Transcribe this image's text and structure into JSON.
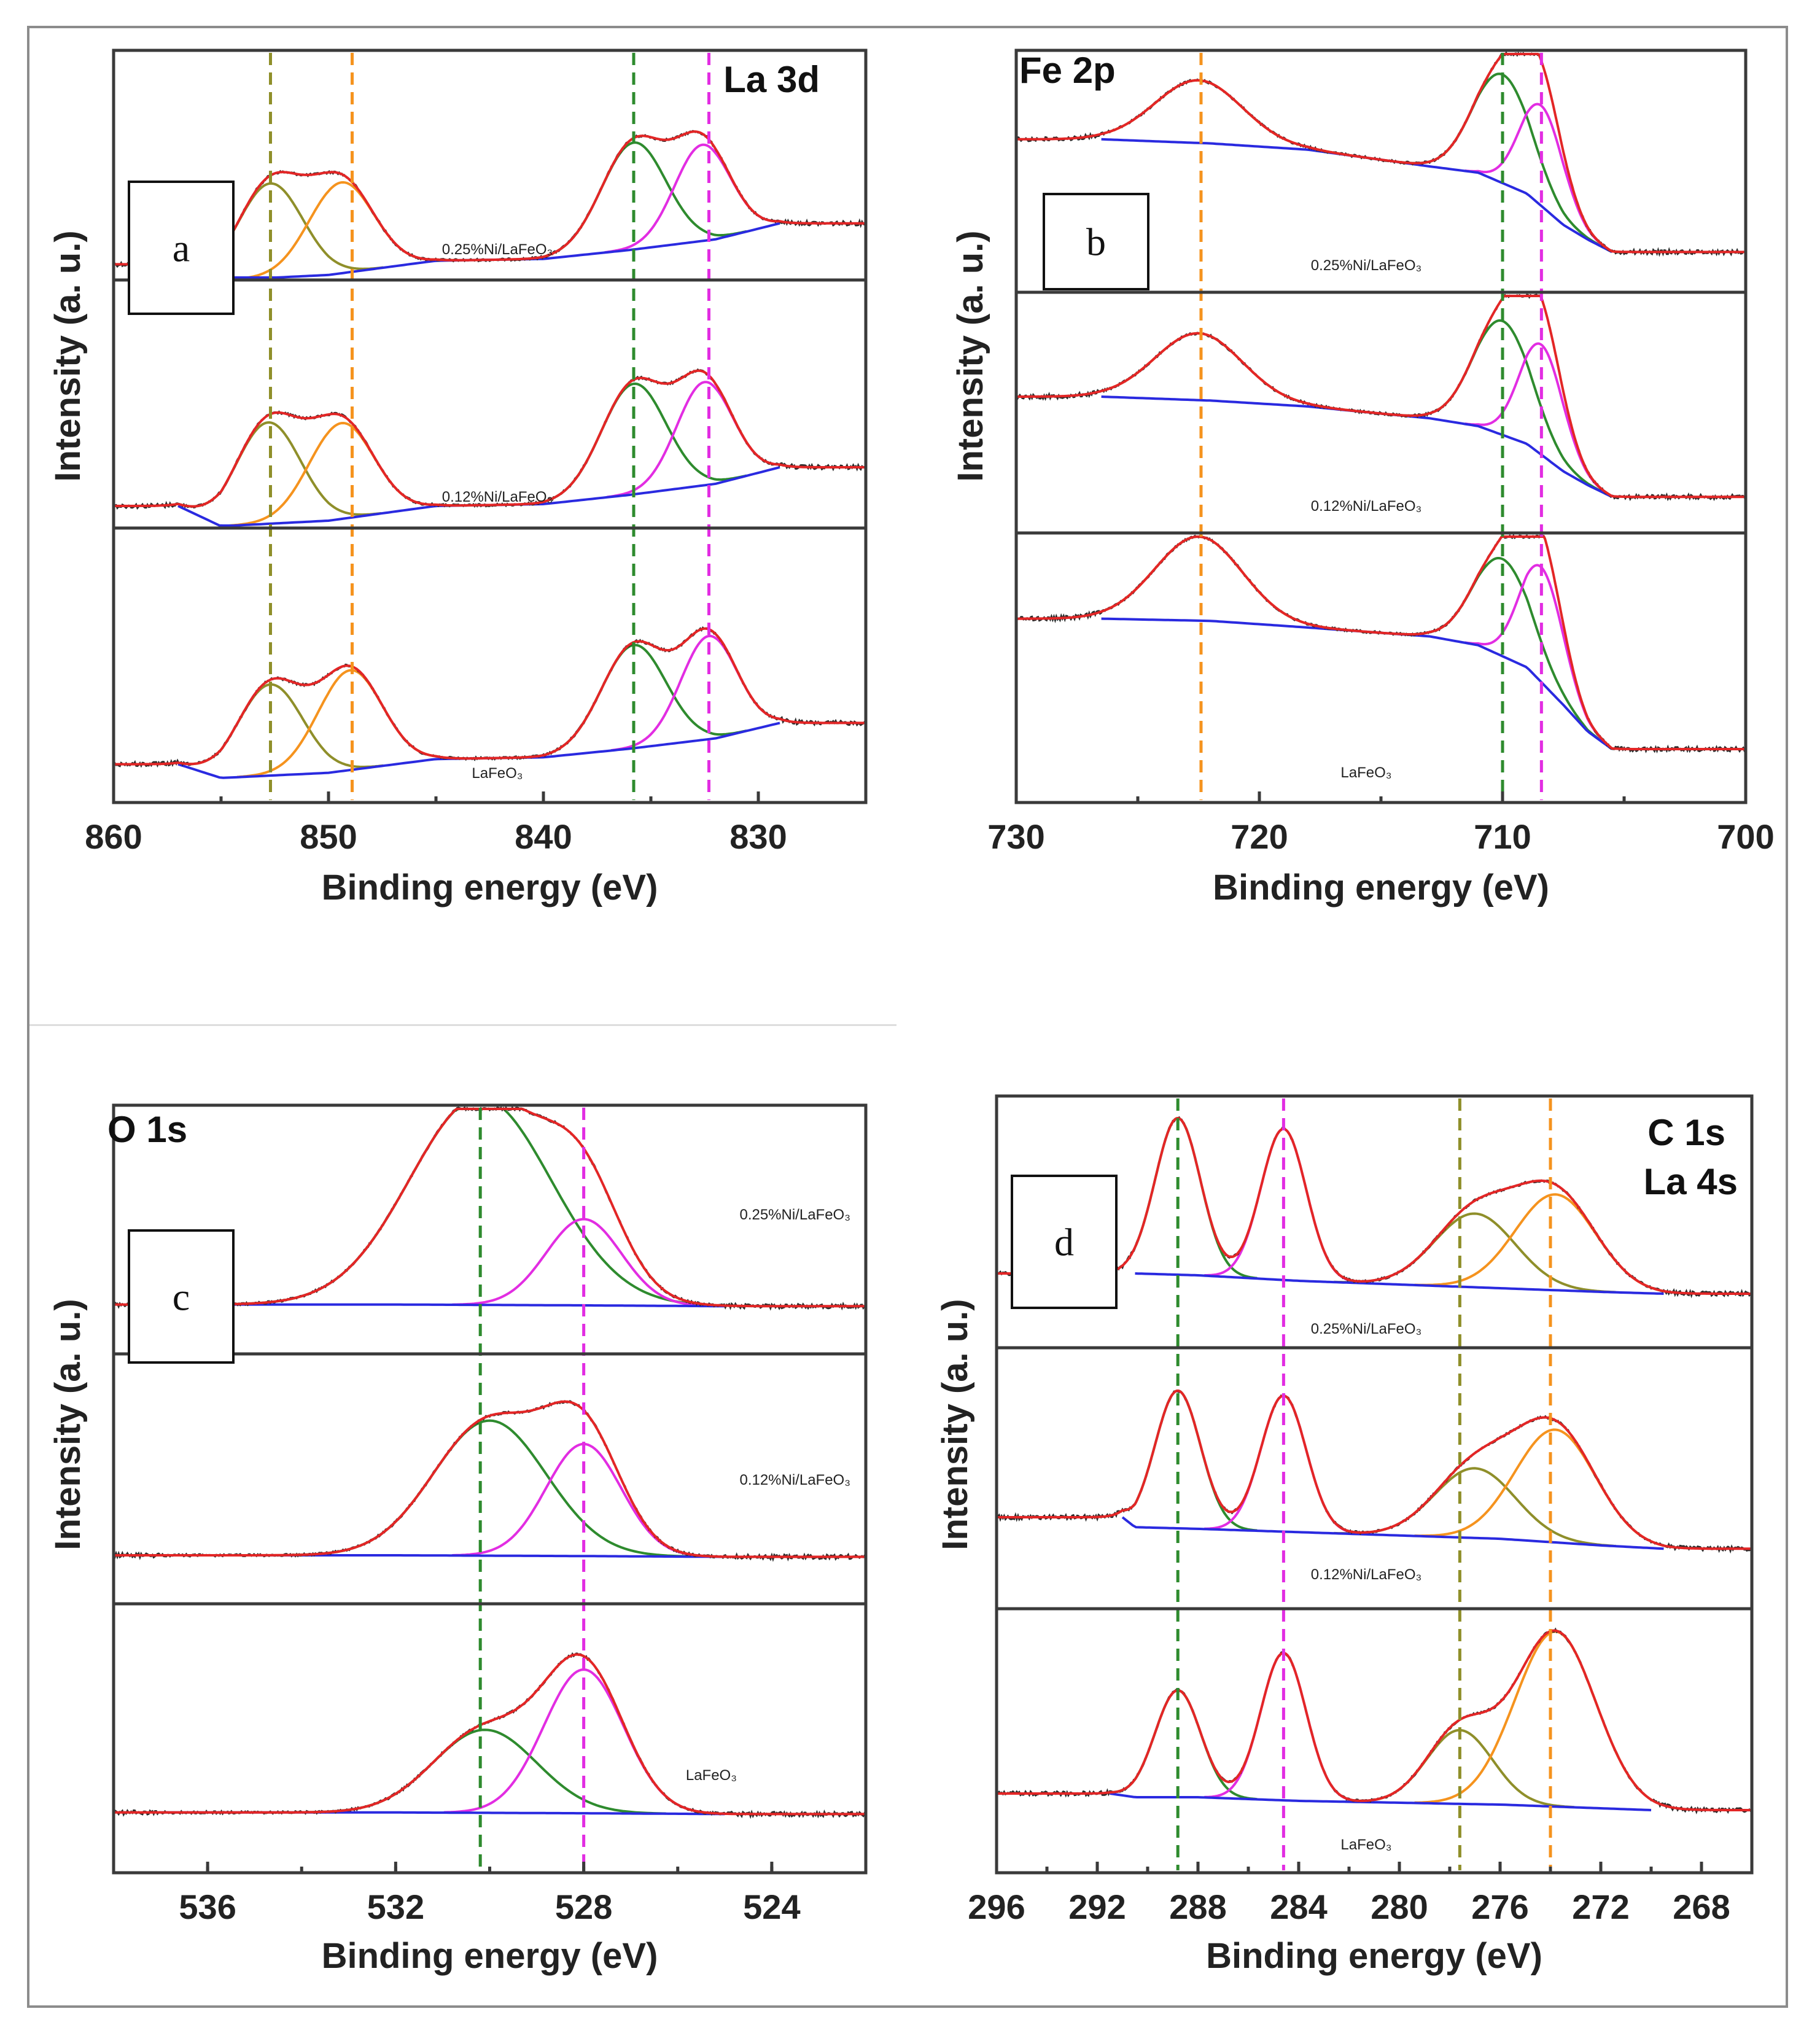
{
  "colors": {
    "data": "#2b2b2b",
    "envelope": "#e32626",
    "background": "#2a2ae0",
    "green": "#2e8b2e",
    "magenta": "#e22de2",
    "orange": "#f5931e",
    "olive": "#8f8f2a"
  },
  "chart_data": [
    {
      "type": "line",
      "panel": "a",
      "title": "La 3d",
      "xlabel": "Binding energy (eV)",
      "ylabel": "Intensity (a. u.)",
      "xlim": [
        860,
        825
      ],
      "xticks": [
        860,
        850,
        840,
        830
      ],
      "reference_lines": [
        {
          "x": 852.7,
          "color": "olive"
        },
        {
          "x": 848.9,
          "color": "orange"
        },
        {
          "x": 835.8,
          "color": "green"
        },
        {
          "x": 832.3,
          "color": "magenta"
        }
      ],
      "series": [
        {
          "name": "0.25%Ni/LaFeO₃",
          "data_range": [
            860,
            825
          ],
          "background": [
            [
              857,
              0.04
            ],
            [
              855,
              -0.05
            ],
            [
              850,
              -0.02
            ],
            [
              845,
              0.06
            ],
            [
              840,
              0.07
            ],
            [
              836,
              0.12
            ],
            [
              832,
              0.18
            ],
            [
              830,
              0.24
            ],
            [
              829,
              0.27
            ]
          ],
          "peaks": [
            {
              "center": 852.7,
              "height": 0.53,
              "width": 1.5,
              "color": "olive"
            },
            {
              "center": 849.4,
              "height": 0.51,
              "width": 1.5,
              "color": "orange"
            },
            {
              "center": 835.8,
              "height": 0.6,
              "width": 1.5,
              "color": "green"
            },
            {
              "center": 832.6,
              "height": 0.54,
              "width": 1.3,
              "color": "magenta"
            }
          ]
        },
        {
          "name": "0.12%Ni/LaFeO₃",
          "data_range": [
            860,
            825
          ],
          "background": [
            [
              857,
              0.06
            ],
            [
              855,
              -0.05
            ],
            [
              850,
              -0.02
            ],
            [
              845,
              0.06
            ],
            [
              840,
              0.07
            ],
            [
              836,
              0.12
            ],
            [
              832,
              0.18
            ],
            [
              830,
              0.24
            ],
            [
              829,
              0.27
            ]
          ],
          "peaks": [
            {
              "center": 852.8,
              "height": 0.55,
              "width": 1.5,
              "color": "olive"
            },
            {
              "center": 849.4,
              "height": 0.52,
              "width": 1.5,
              "color": "orange"
            },
            {
              "center": 835.8,
              "height": 0.6,
              "width": 1.5,
              "color": "green"
            },
            {
              "center": 832.5,
              "height": 0.56,
              "width": 1.3,
              "color": "magenta"
            }
          ]
        },
        {
          "name": "LaFeO₃",
          "data_range": [
            860,
            825
          ],
          "background": [
            [
              857,
              0.03
            ],
            [
              855,
              -0.05
            ],
            [
              850,
              -0.02
            ],
            [
              845,
              0.06
            ],
            [
              840,
              0.07
            ],
            [
              836,
              0.12
            ],
            [
              832,
              0.18
            ],
            [
              830,
              0.24
            ],
            [
              829,
              0.27
            ]
          ],
          "peaks": [
            {
              "center": 852.7,
              "height": 0.53,
              "width": 1.5,
              "color": "olive"
            },
            {
              "center": 849.0,
              "height": 0.58,
              "width": 1.5,
              "color": "orange"
            },
            {
              "center": 835.8,
              "height": 0.6,
              "width": 1.5,
              "color": "green"
            },
            {
              "center": 832.3,
              "height": 0.6,
              "width": 1.3,
              "color": "magenta"
            }
          ]
        }
      ]
    },
    {
      "type": "line",
      "panel": "b",
      "title": "Fe 2p",
      "xlabel": "Binding energy (eV)",
      "ylabel": "Intensity (a. u.)",
      "xlim": [
        730,
        700
      ],
      "xticks": [
        730,
        720,
        710,
        700
      ],
      "reference_lines": [
        {
          "x": 722.4,
          "color": "orange"
        },
        {
          "x": 710.0,
          "color": "green"
        },
        {
          "x": 708.4,
          "color": "magenta"
        }
      ],
      "series": [
        {
          "name": "0.25%Ni/LaFeO₃",
          "data_range": [
            730,
            700
          ],
          "background": [
            [
              726.5,
              0.58
            ],
            [
              722,
              0.56
            ],
            [
              718,
              0.53
            ],
            [
              713,
              0.45
            ],
            [
              711,
              0.42
            ],
            [
              709,
              0.32
            ],
            [
              707.5,
              0.17
            ],
            [
              706.5,
              0.1
            ],
            [
              705.5,
              0.04
            ]
          ],
          "peaks": [
            {
              "center": 722.5,
              "height": 0.3,
              "width": 1.8,
              "color": "orange"
            },
            {
              "center": 710.0,
              "height": 0.52,
              "width": 1.2,
              "color": "green"
            },
            {
              "center": 708.4,
              "height": 0.48,
              "width": 0.9,
              "color": "magenta"
            }
          ]
        },
        {
          "name": "0.12%Ni/LaFeO₃",
          "data_range": [
            730,
            700
          ],
          "background": [
            [
              726.5,
              0.55
            ],
            [
              722,
              0.53
            ],
            [
              718,
              0.5
            ],
            [
              713,
              0.44
            ],
            [
              711,
              0.4
            ],
            [
              709,
              0.31
            ],
            [
              707.5,
              0.17
            ],
            [
              706.5,
              0.1
            ],
            [
              705.5,
              0.04
            ]
          ],
          "peaks": [
            {
              "center": 722.5,
              "height": 0.34,
              "width": 1.8,
              "color": "orange"
            },
            {
              "center": 710.0,
              "height": 0.58,
              "width": 1.2,
              "color": "green"
            },
            {
              "center": 708.4,
              "height": 0.56,
              "width": 0.9,
              "color": "magenta"
            }
          ]
        },
        {
          "name": "LaFeO₃",
          "data_range": [
            730,
            700
          ],
          "background": [
            [
              726.5,
              0.64
            ],
            [
              722,
              0.63
            ],
            [
              718,
              0.6
            ],
            [
              713,
              0.56
            ],
            [
              711,
              0.52
            ],
            [
              709,
              0.42
            ],
            [
              707.5,
              0.25
            ],
            [
              706.5,
              0.13
            ],
            [
              705.5,
              0.05
            ]
          ],
          "peaks": [
            {
              "center": 722.5,
              "height": 0.38,
              "width": 1.8,
              "color": "orange"
            },
            {
              "center": 710.0,
              "height": 0.44,
              "width": 1.2,
              "color": "green"
            },
            {
              "center": 708.4,
              "height": 0.52,
              "width": 0.9,
              "color": "magenta"
            }
          ]
        }
      ]
    },
    {
      "type": "line",
      "panel": "c",
      "title": "O 1s",
      "xlabel": "Binding energy (eV)",
      "ylabel": "Intensity (a. u.)",
      "xlim": [
        538,
        522
      ],
      "xticks": [
        536,
        532,
        528,
        524
      ],
      "reference_lines": [
        {
          "x": 530.2,
          "color": "green"
        },
        {
          "x": 528.0,
          "color": "magenta"
        }
      ],
      "series": [
        {
          "name": "0.25%Ni/LaFeO₃",
          "data_range": [
            538,
            522
          ],
          "background": [
            [
              537,
              0.02
            ],
            [
              532,
              0.02
            ],
            [
              528,
              0.015
            ],
            [
              525,
              0.01
            ]
          ],
          "peaks": [
            {
              "center": 530.2,
              "height": 1.25,
              "width": 1.5,
              "color": "green"
            },
            {
              "center": 528.0,
              "height": 0.52,
              "width": 0.8,
              "color": "magenta"
            }
          ]
        },
        {
          "name": "0.12%Ni/LaFeO₃",
          "data_range": [
            538,
            522
          ],
          "background": [
            [
              537,
              0.02
            ],
            [
              532,
              0.02
            ],
            [
              528,
              0.015
            ],
            [
              525,
              0.01
            ]
          ],
          "peaks": [
            {
              "center": 530.0,
              "height": 0.88,
              "width": 1.2,
              "color": "green"
            },
            {
              "center": 528.0,
              "height": 0.73,
              "width": 0.8,
              "color": "magenta"
            }
          ]
        },
        {
          "name": "LaFeO₃",
          "data_range": [
            538,
            522
          ],
          "background": [
            [
              537,
              0.02
            ],
            [
              532,
              0.02
            ],
            [
              528,
              0.015
            ],
            [
              525,
              0.01
            ]
          ],
          "peaks": [
            {
              "center": 530.1,
              "height": 0.52,
              "width": 1.1,
              "color": "green"
            },
            {
              "center": 528.0,
              "height": 0.9,
              "width": 0.85,
              "color": "magenta"
            }
          ]
        }
      ]
    },
    {
      "type": "line",
      "panel": "d",
      "title": "C 1s",
      "title2": "La 4s",
      "xlabel": "Binding energy (eV)",
      "ylabel": "Intensity (a. u.)",
      "xlim": [
        296,
        266
      ],
      "xticks": [
        296,
        292,
        288,
        284,
        280,
        276,
        272,
        268
      ],
      "reference_lines": [
        {
          "x": 288.8,
          "color": "green"
        },
        {
          "x": 284.6,
          "color": "magenta"
        },
        {
          "x": 277.6,
          "color": "olive"
        },
        {
          "x": 274.0,
          "color": "orange"
        }
      ],
      "series": [
        {
          "name": "0.25%Ni/LaFeO₃",
          "data_range": [
            296,
            266
          ],
          "background": [
            [
              290.5,
              0.12
            ],
            [
              288,
              0.11
            ],
            [
              284,
              0.08
            ],
            [
              280,
              0.06
            ],
            [
              276,
              0.04
            ],
            [
              272,
              0.02
            ],
            [
              269.5,
              0.01
            ]
          ],
          "peaks": [
            {
              "center": 288.8,
              "height": 0.85,
              "width": 0.9,
              "color": "green"
            },
            {
              "center": 284.6,
              "height": 0.82,
              "width": 0.9,
              "color": "magenta"
            },
            {
              "center": 277.0,
              "height": 0.4,
              "width": 1.6,
              "color": "olive"
            },
            {
              "center": 273.8,
              "height": 0.52,
              "width": 1.6,
              "color": "orange"
            }
          ]
        },
        {
          "name": "0.12%Ni/LaFeO₃",
          "data_range": [
            296,
            266
          ],
          "background": [
            [
              291,
              0.2
            ],
            [
              290.5,
              0.14
            ],
            [
              288,
              0.13
            ],
            [
              284,
              0.11
            ],
            [
              280,
              0.09
            ],
            [
              276,
              0.07
            ],
            [
              272,
              0.03
            ],
            [
              269.5,
              0.01
            ]
          ],
          "peaks": [
            {
              "center": 288.8,
              "height": 0.83,
              "width": 0.9,
              "color": "green"
            },
            {
              "center": 284.6,
              "height": 0.82,
              "width": 0.9,
              "color": "magenta"
            },
            {
              "center": 277.0,
              "height": 0.42,
              "width": 1.6,
              "color": "olive"
            },
            {
              "center": 273.8,
              "height": 0.68,
              "width": 1.6,
              "color": "orange"
            }
          ]
        },
        {
          "name": "LaFeO₃",
          "data_range": [
            296,
            266
          ],
          "background": [
            [
              291.5,
              0.09
            ],
            [
              290.5,
              0.07
            ],
            [
              288,
              0.07
            ],
            [
              284,
              0.05
            ],
            [
              280,
              0.04
            ],
            [
              276,
              0.03
            ],
            [
              272,
              0.01
            ],
            [
              270,
              0.0
            ]
          ],
          "peaks": [
            {
              "center": 288.8,
              "height": 0.58,
              "width": 0.9,
              "color": "green"
            },
            {
              "center": 284.6,
              "height": 0.8,
              "width": 0.9,
              "color": "magenta"
            },
            {
              "center": 277.6,
              "height": 0.4,
              "width": 1.3,
              "color": "olive"
            },
            {
              "center": 273.8,
              "height": 0.95,
              "width": 1.6,
              "color": "orange"
            }
          ]
        }
      ]
    }
  ]
}
